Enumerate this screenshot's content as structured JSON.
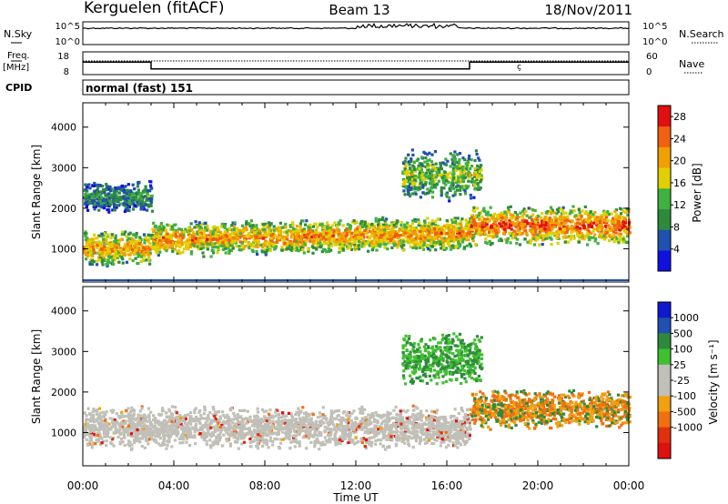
{
  "header": {
    "station": "Kerguelen (fitACF)",
    "beam": "Beam 13",
    "date": "18/Nov/2011"
  },
  "summary": {
    "nsky_label": "N.Sky",
    "nsearch_label": "N.Search",
    "noise_ticks": [
      "10^5",
      "10^0"
    ],
    "freq_label": "Freq.",
    "freq_unit": "[MHz]",
    "freq_ticks": [
      "18",
      "8"
    ],
    "nave_label": "Nave",
    "nave_ticks": [
      "60",
      "0"
    ],
    "cpid_label": "CPID",
    "cpid_value": "normal (fast) 151",
    "freq_series": {
      "x_hours": [
        0,
        3,
        3,
        17,
        17,
        24
      ],
      "mhz": [
        13.5,
        13.5,
        10.5,
        10.5,
        13.5,
        13.5
      ]
    }
  },
  "colors": {
    "power": [
      "#1010e0",
      "#2050b0",
      "#2e8a3c",
      "#40b040",
      "#e0d000",
      "#f0a000",
      "#f06010",
      "#e01010"
    ],
    "velocity": [
      "#1018d0",
      "#2050b0",
      "#2e8a3c",
      "#40c030",
      "#c0c0b8",
      "#c0c0b8",
      "#f0a010",
      "#f07010",
      "#e03010",
      "#e01010"
    ],
    "ground": "#c0c0b8"
  },
  "chart_data": [
    {
      "type": "heatmap",
      "name": "power",
      "x_range_hours": [
        0,
        24
      ],
      "ylabel": "Slant Range [km]",
      "ylim": [
        180,
        4600
      ],
      "yticks": [
        1000,
        2000,
        3000,
        4000
      ],
      "yticklabels": [
        "1000",
        "2000",
        "3000",
        "4000"
      ],
      "colorbar_label": "Power [dB]",
      "colorbar_range": [
        0,
        30
      ],
      "colorbar_ticks": [
        "4",
        "8",
        "12",
        "16",
        "20",
        "24",
        "28"
      ],
      "echo_bands": [
        {
          "t": [
            0,
            3
          ],
          "r": [
            600,
            1500
          ],
          "level": 0.72
        },
        {
          "t": [
            3,
            17
          ],
          "r": [
            800,
            1700
          ],
          "level": 0.75
        },
        {
          "t": [
            17,
            24
          ],
          "r": [
            1100,
            2100
          ],
          "level": 0.85
        },
        {
          "t": [
            0,
            3
          ],
          "r": [
            1900,
            2700
          ],
          "level": 0.35
        },
        {
          "t": [
            14,
            17.5
          ],
          "r": [
            2200,
            3500
          ],
          "level": 0.5
        }
      ]
    },
    {
      "type": "heatmap",
      "name": "velocity",
      "x_range_hours": [
        0,
        24
      ],
      "xticks": [
        "00:00",
        "04:00",
        "08:00",
        "12:00",
        "16:00",
        "20:00",
        "00:00"
      ],
      "xlabel": "Time UT",
      "ylabel": "Slant Range [km]",
      "ylim": [
        180,
        4600
      ],
      "yticks": [
        1000,
        2000,
        3000,
        4000
      ],
      "yticklabels": [
        "1000",
        "2000",
        "3000",
        "4000"
      ],
      "colorbar_label": "Velocity [m s⁻¹]",
      "colorbar_ticks": [
        "1000",
        "500",
        "100",
        "25",
        "-25",
        "-100",
        "-500",
        "-1000"
      ],
      "echo_bands": [
        {
          "t": [
            0,
            17
          ],
          "r": [
            600,
            1700
          ],
          "class": "ground"
        },
        {
          "t": [
            17,
            24
          ],
          "r": [
            1100,
            2100
          ],
          "class": "negative"
        },
        {
          "t": [
            14,
            17.5
          ],
          "r": [
            2200,
            3500
          ],
          "class": "positive"
        }
      ]
    }
  ]
}
